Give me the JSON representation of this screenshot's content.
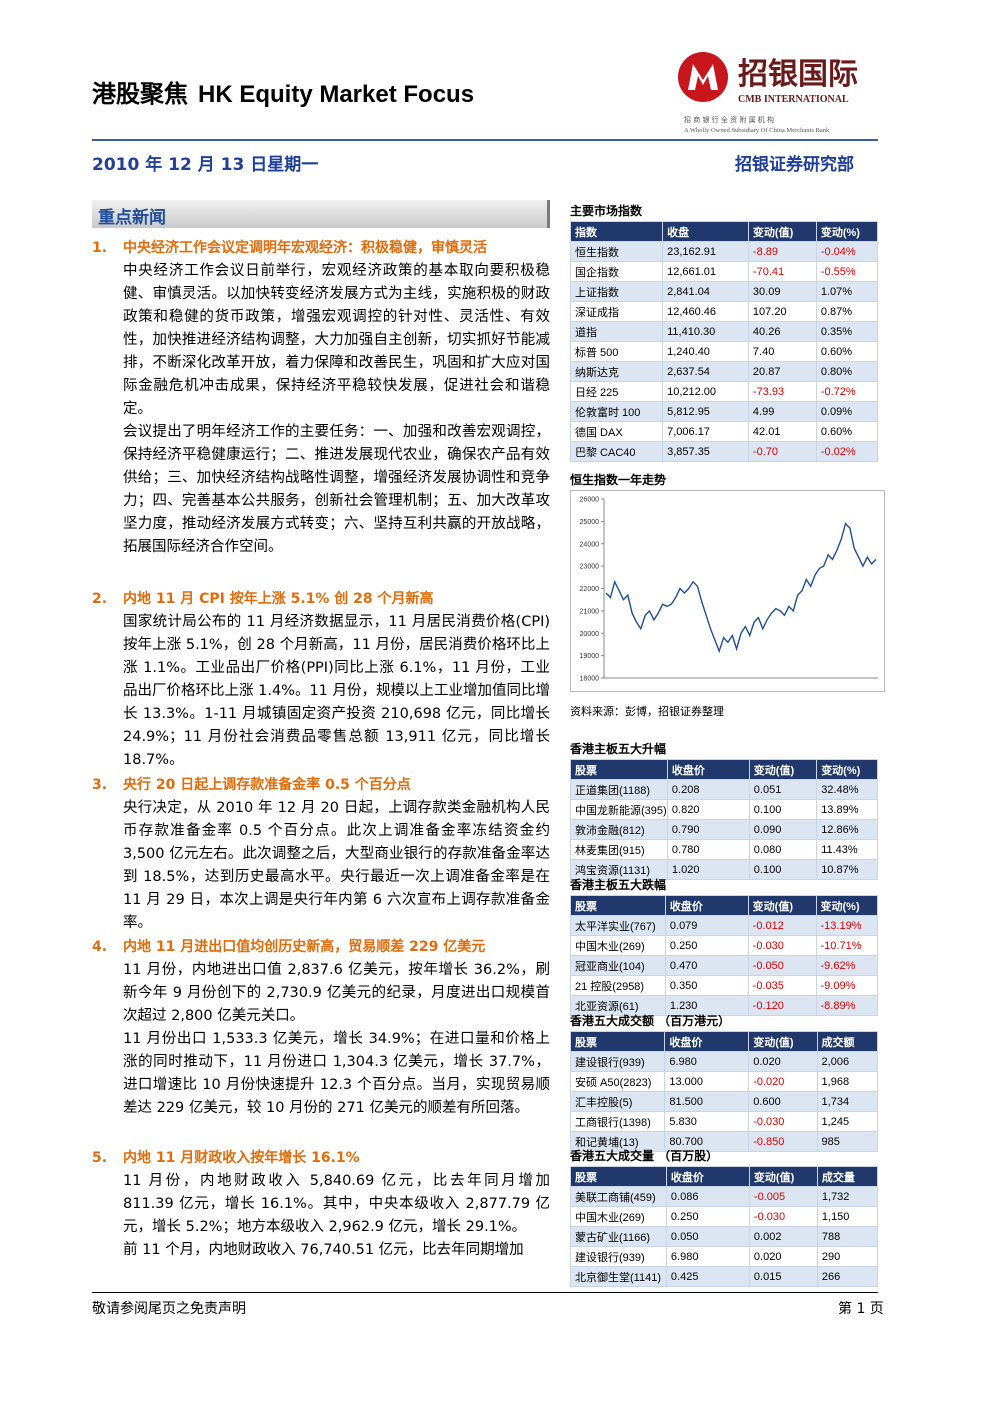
{
  "header": {
    "title_cn": "港股聚焦",
    "title_en": "HK Equity Market Focus",
    "logo_cn": "招银国际",
    "logo_en": "CMB INTERNATIONAL",
    "logo_sub_cn": "招 商 银 行 全 资 附 属 机 构",
    "logo_sub_en": "A Wholly Owned Subsidiary Of China Merchants Bank",
    "date": "2010 年 12 月 13 日星期一",
    "dept": "招银证券研究部"
  },
  "news": {
    "heading": "重点新闻",
    "items": [
      {
        "number": "1.",
        "title": "中央经济工作会议定调明年宏观经济：积极稳健，审慎灵活",
        "paragraphs": [
          "中央经济工作会议日前举行，宏观经济政策的基本取向要积极稳健、审慎灵活。以加快转变经济发展方式为主线，实施积极的财政政策和稳健的货币政策，增强宏观调控的针对性、灵活性、有效性，加快推进经济结构调整，大力加强自主创新，切实抓好节能减排，不断深化改革开放，着力保障和改善民生，巩固和扩大应对国际金融危机冲击成果，保持经济平稳较快发展，促进社会和谐稳定。",
          "会议提出了明年经济工作的主要任务：一、加强和改善宏观调控，保持经济平稳健康运行；二、推进发展现代农业，确保农产品有效供给；三、加快经济结构战略性调整，增强经济发展协调性和竞争力；四、完善基本公共服务，创新社会管理机制；五、加大改革攻坚力度，推动经济发展方式转变；六、坚持互利共赢的开放战略，拓展国际经济合作空间。"
        ]
      },
      {
        "number": "2.",
        "title": "内地 11 月 CPI 按年上涨 5.1% 创 28 个月新高",
        "paragraphs": [
          "国家统计局公布的 11 月经济数据显示，11 月居民消费价格(CPI)按年上涨 5.1%，创 28 个月新高，11 月份，居民消费价格环比上涨 1.1%。工业品出厂价格(PPI)同比上涨 6.1%，11 月份，工业品出厂价格环比上涨 1.4%。11 月份，规模以上工业增加值同比增长 13.3%。1-11 月城镇固定资产投资 210,698 亿元，同比增长 24.9%；11 月份社会消费品零售总额 13,911 亿元，同比增长 18.7%。"
        ]
      },
      {
        "number": "3.",
        "title": "央行 20 日起上调存款准备金率 0.5 个百分点",
        "paragraphs": [
          "央行决定，从 2010 年 12 月 20 日起，上调存款类金融机构人民币存款准备金率 0.5 个百分点。此次上调准备金率冻结资金约 3,500 亿元左右。此次调整之后，大型商业银行的存款准备金率达到 18.5%，达到历史最高水平。央行最近一次上调准备金率是在 11 月 29 日，本次上调是央行年内第 6 六次宣布上调存款准备金率。"
        ]
      },
      {
        "number": "4.",
        "title": "内地 11 月进出口值均创历史新高，贸易顺差 229 亿美元",
        "paragraphs": [
          "11 月份，内地进出口值 2,837.6 亿美元，按年增长 36.2%，刷新今年 9 月份创下的 2,730.9 亿美元的纪录，月度进出口规模首次超过 2,800 亿美元关口。",
          "11 月份出口 1,533.3 亿美元，增长 34.9%；在进口量和价格上涨的同时推动下，11 月份进口 1,304.3 亿美元，增长 37.7%，进口增速比 10 月份快速提升 12.3 个百分点。当月，实现贸易顺差达 229 亿美元，较 10 月份的 271 亿美元的顺差有所回落。"
        ]
      },
      {
        "number": "5.",
        "title": "内地 11 月财政收入按年增长 16.1%",
        "paragraphs": [
          "11 月份，内地财政收入 5,840.69 亿元，比去年同月增加 811.39 亿元，增长 16.1%。其中，中央本级收入 2,877.79 亿元，增长 5.2%；地方本级收入 2,962.9 亿元，增长 29.1%。",
          "前 11 个月，内地财政收入 76,740.51 亿元，比去年同期增加"
        ]
      }
    ]
  },
  "indices": {
    "title": "主要市场指数",
    "columns": [
      "指数",
      "收盘",
      "变动(值)",
      "变动(%)"
    ],
    "rows": [
      [
        "恒生指数",
        "23,162.91",
        "-8.89",
        "-0.04%"
      ],
      [
        "国企指数",
        "12,661.01",
        "-70.41",
        "-0.55%"
      ],
      [
        "上证指数",
        "2,841.04",
        "30.09",
        "1.07%"
      ],
      [
        "深证成指",
        "12,460.46",
        "107.20",
        "0.87%"
      ],
      [
        "道指",
        "11,410.30",
        "40.26",
        "0.35%"
      ],
      [
        "标普 500",
        "1,240.40",
        "7.40",
        "0.60%"
      ],
      [
        "纳斯达克",
        "2,637.54",
        "20.87",
        "0.80%"
      ],
      [
        "日经 225",
        "10,212.00",
        "-73.93",
        "-0.72%"
      ],
      [
        "伦敦富时 100",
        "5,812.95",
        "4.99",
        "0.09%"
      ],
      [
        "德国 DAX",
        "7,006.17",
        "42.01",
        "0.60%"
      ],
      [
        "巴黎 CAC40",
        "3,857.35",
        "-0.70",
        "-0.02%"
      ]
    ]
  },
  "chart": {
    "title": "恒生指数一年走势",
    "ylim": [
      18000,
      26000
    ],
    "yticks": [
      18000,
      19000,
      20000,
      21000,
      22000,
      23000,
      24000,
      25000,
      26000
    ],
    "values": [
      21800,
      21600,
      22300,
      21900,
      21500,
      21700,
      20900,
      20500,
      20200,
      20800,
      21000,
      20600,
      20900,
      21300,
      21200,
      21300,
      21600,
      22000,
      21800,
      22000,
      22300,
      22100,
      21400,
      20800,
      20200,
      19700,
      19200,
      19800,
      19600,
      19900,
      19300,
      20000,
      20300,
      19900,
      20500,
      20700,
      20200,
      20600,
      20900,
      21100,
      21000,
      20800,
      21200,
      21000,
      21700,
      21900,
      22400,
      22100,
      22600,
      22900,
      23000,
      23500,
      23300,
      23700,
      24200,
      24900,
      24700,
      23800,
      23400,
      23000,
      23400,
      23100,
      23300
    ],
    "source": "资料来源：彭博，招银证券整理"
  },
  "tables": [
    {
      "title": "香港主板五大升幅",
      "columns": [
        "股票",
        "收盘价",
        "变动(值)",
        "变动(%)"
      ],
      "rows": [
        [
          "正道集团(1188)",
          "0.208",
          "0.051",
          "32.48%"
        ],
        [
          "中国龙新能源(395)",
          "0.820",
          "0.100",
          "13.89%"
        ],
        [
          "敦沛金融(812)",
          "0.790",
          "0.090",
          "12.86%"
        ],
        [
          "林麦集团(915)",
          "0.780",
          "0.080",
          "11.43%"
        ],
        [
          "鸿宝资源(1131)",
          "1.020",
          "0.100",
          "10.87%"
        ]
      ]
    },
    {
      "title": "香港主板五大跌幅",
      "columns": [
        "股票",
        "收盘价",
        "变动(值)",
        "变动(%)"
      ],
      "rows": [
        [
          "太平洋实业(767)",
          "0.079",
          "-0.012",
          "-13.19%"
        ],
        [
          "中国木业(269)",
          "0.250",
          "-0.030",
          "-10.71%"
        ],
        [
          "冠亚商业(104)",
          "0.470",
          "-0.050",
          "-9.62%"
        ],
        [
          "21 控股(2958)",
          "0.350",
          "-0.035",
          "-9.09%"
        ],
        [
          "北亚资源(61)",
          "1.230",
          "-0.120",
          "-8.89%"
        ]
      ]
    },
    {
      "title": "香港五大成交额 （百万港元）",
      "columns": [
        "股票",
        "收盘价",
        "变动(值)",
        "成交额"
      ],
      "rows": [
        [
          "建设银行(939)",
          "6.980",
          "0.020",
          "2,006"
        ],
        [
          "安硕 A50(2823)",
          "13.000",
          "-0.020",
          "1,968"
        ],
        [
          "汇丰控股(5)",
          "81.500",
          "0.600",
          "1,734"
        ],
        [
          "工商银行(1398)",
          "5.830",
          "-0.030",
          "1,245"
        ],
        [
          "和记黄埔(13)",
          "80.700",
          "-0.850",
          "985"
        ]
      ]
    },
    {
      "title": "香港五大成交量 （百万股）",
      "columns": [
        "股票",
        "收盘价",
        "变动(值)",
        "成交量"
      ],
      "rows": [
        [
          "美联工商铺(459)",
          "0.086",
          "-0.005",
          "1,732"
        ],
        [
          "中国木业(269)",
          "0.250",
          "-0.030",
          "1,150"
        ],
        [
          "蒙古矿业(1166)",
          "0.050",
          "0.002",
          "788"
        ],
        [
          "建设银行(939)",
          "6.980",
          "0.020",
          "290"
        ],
        [
          "北京御生堂(1141)",
          "0.425",
          "0.015",
          "266"
        ]
      ]
    }
  ],
  "footer": {
    "disclaimer": "敬请参阅尾页之免责声明",
    "page": "第 1 页"
  }
}
